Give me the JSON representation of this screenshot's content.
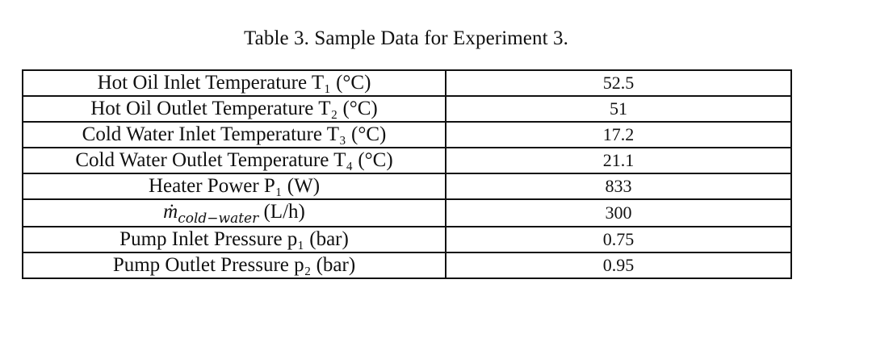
{
  "caption": "Table 3. Sample Data for Experiment 3.",
  "rows": [
    {
      "parameter": "Hot Oil Inlet Temperature T₁ (°C)",
      "value": "52.5"
    },
    {
      "parameter": "Hot Oil Outlet Temperature T₂ (°C)",
      "value": "51"
    },
    {
      "parameter": "Cold Water Inlet Temperature T₃ (°C)",
      "value": "17.2"
    },
    {
      "parameter": "Cold Water Outlet Temperature T₄ (°C)",
      "value": "21.1"
    },
    {
      "parameter": "Heater Power P₁ (W)",
      "value": "833"
    },
    {
      "parameter_symbol": "ṁ",
      "parameter_subscript": "cold−water",
      "parameter_unit": " (L/h)",
      "value": "300"
    },
    {
      "parameter": "Pump Inlet Pressure p₁ (bar)",
      "value": "0.75"
    },
    {
      "parameter": "Pump Outlet Pressure p₂ (bar)",
      "value": "0.95"
    }
  ]
}
